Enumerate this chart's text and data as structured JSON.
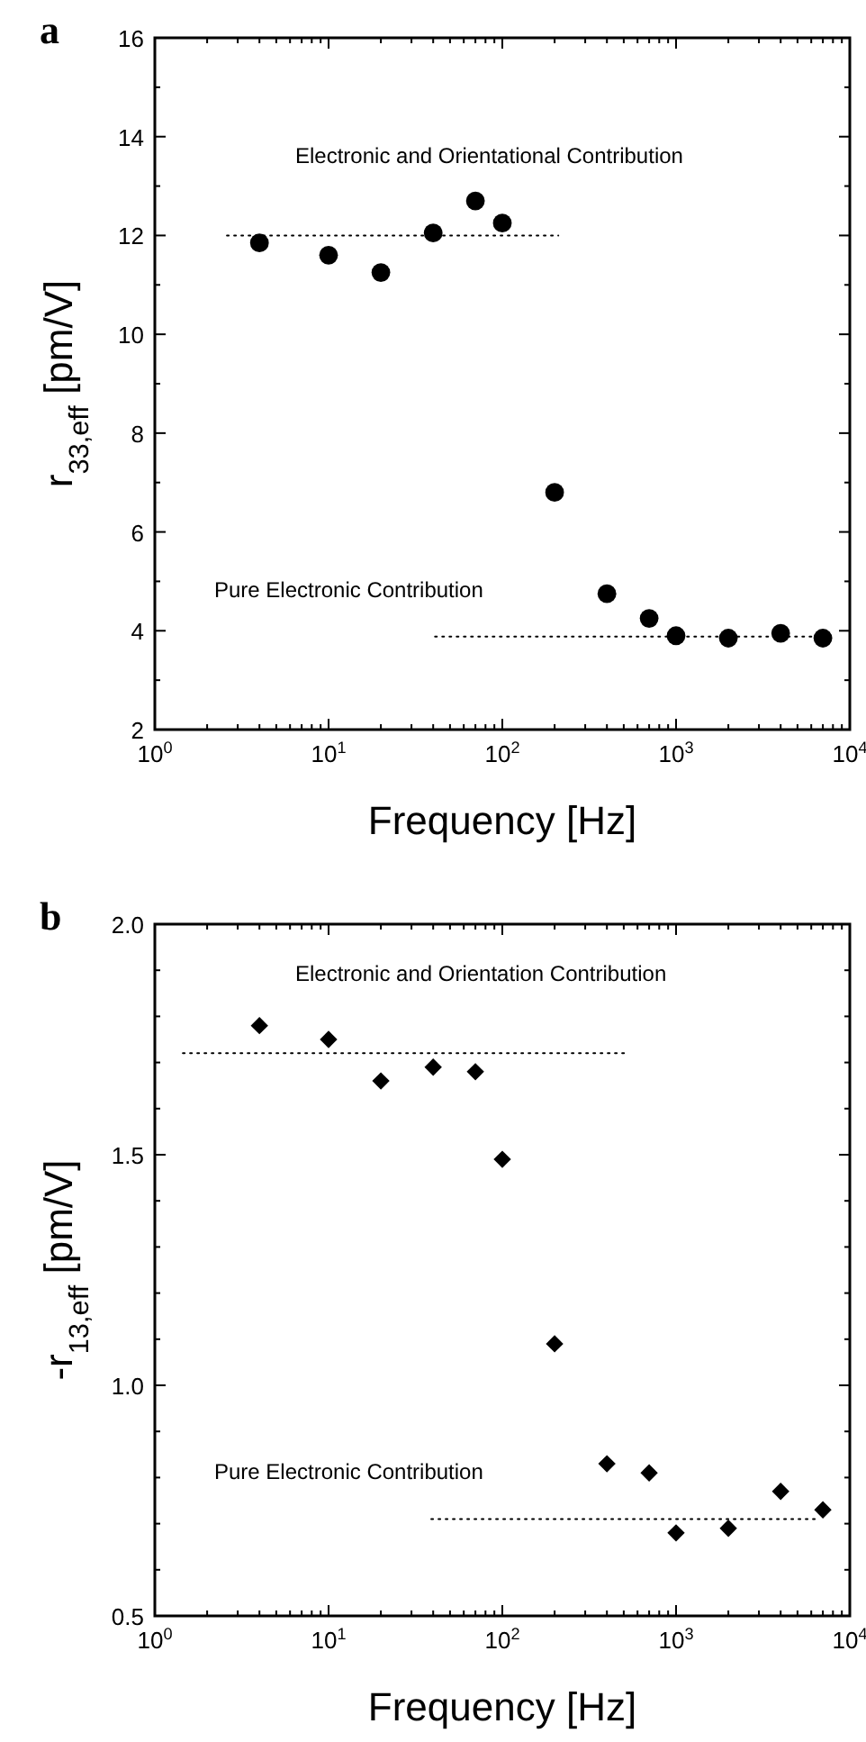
{
  "chart_data": [
    {
      "type": "scatter",
      "xlabel": "Frequency [Hz]",
      "ylabel": "r$_{33,eff}$ [pm/V]",
      "log": "x",
      "grid": false,
      "marker": "circle",
      "xlim": [
        1,
        10000
      ],
      "ylim": [
        2,
        16
      ],
      "xticks": [
        {
          "value": 1,
          "label": "10$^{0}$"
        },
        {
          "value": 10,
          "label": "10$^{1}$"
        },
        {
          "value": 100,
          "label": "10$^{2}$"
        },
        {
          "value": 1000,
          "label": "10$^{3}$"
        },
        {
          "value": 10000,
          "label": "10$^{4}$"
        },
        {
          "value": 2,
          "label": null
        },
        {
          "value": 3,
          "label": null
        },
        {
          "value": 4,
          "label": null
        },
        {
          "value": 5,
          "label": null
        },
        {
          "value": 6,
          "label": null
        },
        {
          "value": 7,
          "label": null
        },
        {
          "value": 8,
          "label": null
        },
        {
          "value": 9,
          "label": null
        },
        {
          "value": 20,
          "label": null
        },
        {
          "value": 30,
          "label": null
        },
        {
          "value": 40,
          "label": null
        },
        {
          "value": 50,
          "label": null
        },
        {
          "value": 60,
          "label": null
        },
        {
          "value": 70,
          "label": null
        },
        {
          "value": 80,
          "label": null
        },
        {
          "value": 90,
          "label": null
        },
        {
          "value": 200,
          "label": null
        },
        {
          "value": 300,
          "label": null
        },
        {
          "value": 400,
          "label": null
        },
        {
          "value": 500,
          "label": null
        },
        {
          "value": 600,
          "label": null
        },
        {
          "value": 700,
          "label": null
        },
        {
          "value": 800,
          "label": null
        },
        {
          "value": 900,
          "label": null
        },
        {
          "value": 2000,
          "label": null
        },
        {
          "value": 3000,
          "label": null
        },
        {
          "value": 4000,
          "label": null
        },
        {
          "value": 5000,
          "label": null
        },
        {
          "value": 6000,
          "label": null
        },
        {
          "value": 7000,
          "label": null
        },
        {
          "value": 8000,
          "label": null
        },
        {
          "value": 9000,
          "label": null
        }
      ],
      "yticks": [
        2,
        4,
        6,
        8,
        10,
        12,
        14,
        16,
        {
          "value": 3,
          "label": null
        },
        {
          "value": 5,
          "label": null
        },
        {
          "value": 7,
          "label": null
        },
        {
          "value": 9,
          "label": null
        },
        {
          "value": 11,
          "label": null
        },
        {
          "value": 13,
          "label": null
        },
        {
          "value": 15,
          "label": null
        }
      ],
      "series": [
        {
          "color": "#000000",
          "x": [
            4,
            10,
            20,
            40,
            70,
            100,
            200,
            400,
            700,
            1000,
            2000,
            4000,
            7000
          ],
          "values": [
            11.85,
            11.6,
            11.25,
            12.05,
            12.7,
            12.25,
            6.8,
            4.75,
            4.25,
            3.9,
            3.85,
            3.95,
            3.85
          ]
        },
        {
          "type": "line",
          "color": "#000000",
          "line_style": "dotted",
          "marker": "none",
          "x": [
            2.6,
            210
          ],
          "values": [
            12.0,
            12.0
          ]
        },
        {
          "type": "line",
          "color": "#000000",
          "line_style": "dotted",
          "marker": "none",
          "x": [
            41,
            7700
          ],
          "values": [
            3.88,
            3.88
          ]
        }
      ],
      "annotations": [
        "a",
        "Electronic and Orientational Contribution",
        "Pure Electronic Contribution"
      ]
    },
    {
      "type": "scatter",
      "xlabel": "Frequency [Hz]",
      "ylabel": "-r$_{13,eff}$ [pm/V]",
      "log": "x",
      "grid": false,
      "marker": "diamond",
      "xlim": [
        1,
        10000
      ],
      "ylim": [
        0.5,
        2.0
      ],
      "xticks": [
        {
          "value": 1,
          "label": "10$^{0}$"
        },
        {
          "value": 10,
          "label": "10$^{1}$"
        },
        {
          "value": 100,
          "label": "10$^{2}$"
        },
        {
          "value": 1000,
          "label": "10$^{3}$"
        },
        {
          "value": 10000,
          "label": "10$^{4}$"
        },
        {
          "value": 2,
          "label": null
        },
        {
          "value": 3,
          "label": null
        },
        {
          "value": 4,
          "label": null
        },
        {
          "value": 5,
          "label": null
        },
        {
          "value": 6,
          "label": null
        },
        {
          "value": 7,
          "label": null
        },
        {
          "value": 8,
          "label": null
        },
        {
          "value": 9,
          "label": null
        },
        {
          "value": 20,
          "label": null
        },
        {
          "value": 30,
          "label": null
        },
        {
          "value": 40,
          "label": null
        },
        {
          "value": 50,
          "label": null
        },
        {
          "value": 60,
          "label": null
        },
        {
          "value": 70,
          "label": null
        },
        {
          "value": 80,
          "label": null
        },
        {
          "value": 90,
          "label": null
        },
        {
          "value": 200,
          "label": null
        },
        {
          "value": 300,
          "label": null
        },
        {
          "value": 400,
          "label": null
        },
        {
          "value": 500,
          "label": null
        },
        {
          "value": 600,
          "label": null
        },
        {
          "value": 700,
          "label": null
        },
        {
          "value": 800,
          "label": null
        },
        {
          "value": 900,
          "label": null
        },
        {
          "value": 2000,
          "label": null
        },
        {
          "value": 3000,
          "label": null
        },
        {
          "value": 4000,
          "label": null
        },
        {
          "value": 5000,
          "label": null
        },
        {
          "value": 6000,
          "label": null
        },
        {
          "value": 7000,
          "label": null
        },
        {
          "value": 8000,
          "label": null
        },
        {
          "value": 9000,
          "label": null
        }
      ],
      "yticks": [
        {
          "value": 0.5,
          "label": "0.5"
        },
        {
          "value": 1.0,
          "label": "1.0"
        },
        {
          "value": 1.5,
          "label": "1.5"
        },
        {
          "value": 2.0,
          "label": "2.0"
        },
        {
          "value": 0.6,
          "label": null
        },
        {
          "value": 0.7,
          "label": null
        },
        {
          "value": 0.8,
          "label": null
        },
        {
          "value": 0.9,
          "label": null
        },
        {
          "value": 1.1,
          "label": null
        },
        {
          "value": 1.2,
          "label": null
        },
        {
          "value": 1.3,
          "label": null
        },
        {
          "value": 1.4,
          "label": null
        },
        {
          "value": 1.6,
          "label": null
        },
        {
          "value": 1.7,
          "label": null
        },
        {
          "value": 1.8,
          "label": null
        },
        {
          "value": 1.9,
          "label": null
        }
      ],
      "series": [
        {
          "color": "#000000",
          "x": [
            4,
            10,
            20,
            40,
            70,
            100,
            200,
            400,
            700,
            1000,
            2000,
            4000,
            7000
          ],
          "values": [
            1.78,
            1.75,
            1.66,
            1.69,
            1.68,
            1.49,
            1.09,
            0.83,
            0.81,
            0.68,
            0.69,
            0.77,
            0.73
          ]
        },
        {
          "type": "line",
          "color": "#000000",
          "line_style": "dotted",
          "marker": "none",
          "x": [
            1.45,
            520
          ],
          "values": [
            1.72,
            1.72
          ]
        },
        {
          "type": "line",
          "color": "#000000",
          "line_style": "dotted",
          "marker": "none",
          "x": [
            39,
            6300
          ],
          "values": [
            0.71,
            0.71
          ]
        }
      ],
      "annotations": [
        "b",
        "Electronic and Orientation Contribution",
        "Pure Electronic Contribution"
      ]
    }
  ]
}
